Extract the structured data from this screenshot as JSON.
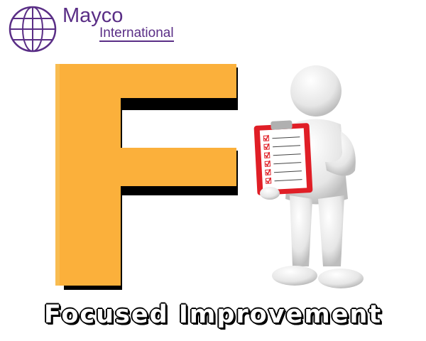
{
  "logo": {
    "name": "Mayco",
    "subtitle": "International",
    "icon": "globe-icon",
    "color": "#5a2e86"
  },
  "letter": {
    "char": "F",
    "fill_color": "#fbb03b",
    "shadow_color": "#000000"
  },
  "figure": {
    "icon": "person-with-clipboard-icon",
    "clipboard_color": "#e01e26",
    "checkbox_count": 6
  },
  "caption": {
    "text": "Focused Improvement"
  }
}
